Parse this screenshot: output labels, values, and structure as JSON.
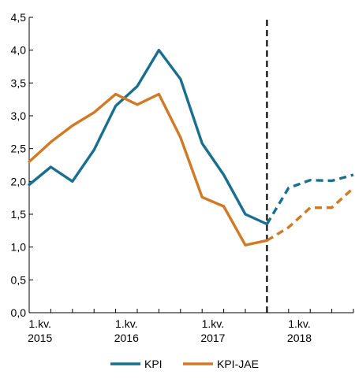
{
  "chart_data": {
    "type": "line",
    "title": "",
    "xlabel": "",
    "ylabel": "",
    "ylim": [
      0,
      4.5
    ],
    "yticks": [
      "0,0",
      "0,5",
      "1,0",
      "1,5",
      "2,0",
      "2,5",
      "3,0",
      "3,5",
      "4,0",
      "4,5"
    ],
    "xticks": [
      {
        "line1": "1.kv.",
        "line2": "2015"
      },
      {
        "line1": "1.kv.",
        "line2": "2016"
      },
      {
        "line1": "1.kv.",
        "line2": "2017"
      },
      {
        "line1": "1.kv.",
        "line2": "2018"
      }
    ],
    "x": [
      "2015Q1",
      "2015Q2",
      "2015Q3",
      "2015Q4",
      "2016Q1",
      "2016Q2",
      "2016Q3",
      "2016Q4",
      "2017Q1",
      "2017Q2",
      "2017Q3",
      "2017Q4",
      "2018Q1",
      "2018Q2",
      "2018Q3",
      "2018Q4"
    ],
    "projection_start": "2017Q4",
    "grid": false,
    "legend_position": "bottom",
    "series": [
      {
        "name": "KPI",
        "color": "#1a6f8f",
        "values": [
          1.95,
          2.22,
          2.0,
          2.48,
          3.15,
          3.45,
          4.0,
          3.56,
          2.58,
          2.1,
          1.5,
          1.35,
          1.9,
          2.02,
          2.01,
          2.1
        ]
      },
      {
        "name": "KPI-JAE",
        "color": "#d07a27",
        "values": [
          2.3,
          2.6,
          2.85,
          3.05,
          3.33,
          3.17,
          3.33,
          2.67,
          1.76,
          1.62,
          1.03,
          1.1,
          1.3,
          1.6,
          1.6,
          1.9
        ]
      }
    ]
  }
}
